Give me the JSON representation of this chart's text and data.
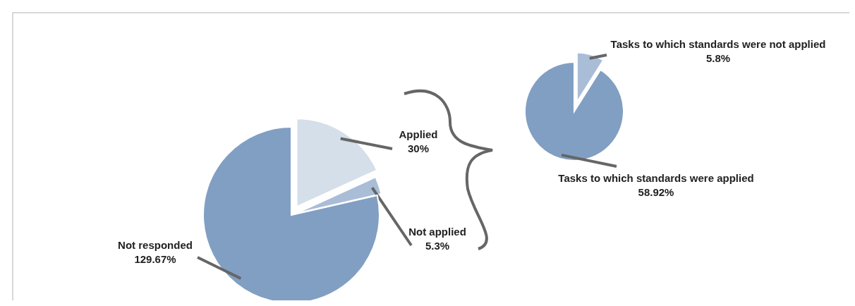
{
  "chart_data": [
    {
      "type": "pie",
      "categories": [
        "Applied",
        "Not applied",
        "Not responded"
      ],
      "values": [
        30,
        5.3,
        129.67
      ],
      "value_labels": [
        "30%",
        "5.3%",
        "129.67%"
      ],
      "colors": [
        "#d5dfea",
        "#a9bdd6",
        "#819fc2"
      ]
    },
    {
      "type": "pie",
      "categories": [
        "Tasks to which standards were not applied",
        "Tasks to which standards were applied"
      ],
      "values": [
        5.8,
        58.92
      ],
      "value_labels": [
        "5.8%",
        "58.92%"
      ],
      "colors": [
        "#a9bdd6",
        "#819fc2"
      ]
    }
  ]
}
